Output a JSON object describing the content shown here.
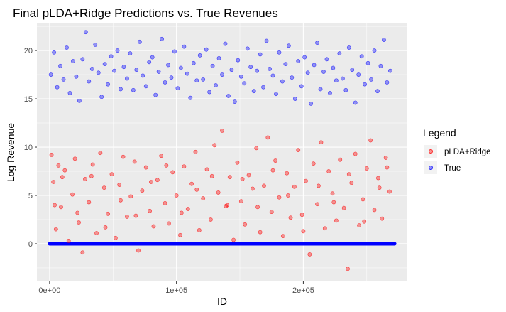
{
  "chart_data": {
    "type": "scatter",
    "title": "Final pLDA+Ridge Predictions vs. True Revenues",
    "xlabel": "ID",
    "ylabel": "Log Revenue",
    "xlim": [
      -10000,
      282000
    ],
    "ylim": [
      -3.9,
      22.8
    ],
    "x_ticks": [
      {
        "value": 0,
        "label": "0e+00"
      },
      {
        "value": 100000,
        "label": "1e+05"
      },
      {
        "value": 200000,
        "label": "2e+05"
      }
    ],
    "y_ticks": [
      {
        "value": 0,
        "label": "0"
      },
      {
        "value": 5,
        "label": "5"
      },
      {
        "value": 10,
        "label": "10"
      },
      {
        "value": 15,
        "label": "15"
      },
      {
        "value": 20,
        "label": "20"
      }
    ],
    "grid": true,
    "background": "#ebebeb",
    "legend": {
      "title": "Legend",
      "position": "right",
      "entries": [
        {
          "label": "pLDA+Ridge",
          "color": "#ff0000"
        },
        {
          "label": "True",
          "color": "#0000ff"
        }
      ]
    },
    "series": [
      {
        "name": "pLDA+Ridge",
        "color": "#ff0000",
        "points": [
          [
            1500,
            9.2
          ],
          [
            3000,
            6.4
          ],
          [
            5000,
            1.5
          ],
          [
            7000,
            8.1
          ],
          [
            9000,
            3.8
          ],
          [
            12000,
            7.6
          ],
          [
            15000,
            0.3
          ],
          [
            18000,
            5.1
          ],
          [
            20000,
            8.8
          ],
          [
            23000,
            2.2
          ],
          [
            26000,
            -0.9
          ],
          [
            28000,
            6.7
          ],
          [
            31000,
            4.3
          ],
          [
            34000,
            8.2
          ],
          [
            37000,
            1.1
          ],
          [
            40000,
            9.4
          ],
          [
            43000,
            5.8
          ],
          [
            46000,
            3.1
          ],
          [
            49000,
            7.2
          ],
          [
            52000,
            0.6
          ],
          [
            55000,
            6.1
          ],
          [
            58000,
            9.0
          ],
          [
            61000,
            2.8
          ],
          [
            64000,
            4.9
          ],
          [
            67000,
            8.5
          ],
          [
            70000,
            -0.7
          ],
          [
            73000,
            5.5
          ],
          [
            76000,
            7.9
          ],
          [
            79000,
            3.4
          ],
          [
            82000,
            1.8
          ],
          [
            85000,
            6.6
          ],
          [
            88000,
            9.1
          ],
          [
            91000,
            4.2
          ],
          [
            94000,
            2.1
          ],
          [
            97000,
            7.4
          ],
          [
            100000,
            5.0
          ],
          [
            103000,
            0.9
          ],
          [
            106000,
            8.0
          ],
          [
            109000,
            3.6
          ],
          [
            112000,
            6.2
          ],
          [
            115000,
            9.5
          ],
          [
            118000,
            1.4
          ],
          [
            121000,
            4.7
          ],
          [
            124000,
            7.7
          ],
          [
            127000,
            2.5
          ],
          [
            130000,
            10.2
          ],
          [
            133000,
            5.3
          ],
          [
            136000,
            11.7
          ],
          [
            139000,
            3.9
          ],
          [
            142000,
            6.9
          ],
          [
            145000,
            0.4
          ],
          [
            148000,
            8.4
          ],
          [
            151000,
            4.4
          ],
          [
            154000,
            2.0
          ],
          [
            157000,
            7.1
          ],
          [
            160000,
            5.7
          ],
          [
            163000,
            9.9
          ],
          [
            166000,
            1.2
          ],
          [
            169000,
            6.0
          ],
          [
            172000,
            11.0
          ],
          [
            175000,
            3.3
          ],
          [
            178000,
            8.6
          ],
          [
            181000,
            4.8
          ],
          [
            184000,
            0.8
          ],
          [
            187000,
            7.3
          ],
          [
            190000,
            2.7
          ],
          [
            193000,
            5.9
          ],
          [
            196000,
            9.7
          ],
          [
            199000,
            3.0
          ],
          [
            202000,
            6.5
          ],
          [
            205000,
            -1.1
          ],
          [
            208000,
            8.3
          ],
          [
            211000,
            4.1
          ],
          [
            214000,
            10.5
          ],
          [
            217000,
            1.6
          ],
          [
            220000,
            7.5
          ],
          [
            223000,
            5.2
          ],
          [
            226000,
            2.4
          ],
          [
            229000,
            8.7
          ],
          [
            232000,
            3.7
          ],
          [
            235000,
            -2.6
          ],
          [
            238000,
            6.3
          ],
          [
            241000,
            9.3
          ],
          [
            244000,
            1.9
          ],
          [
            247000,
            4.6
          ],
          [
            250000,
            7.8
          ],
          [
            253000,
            10.7
          ],
          [
            256000,
            3.5
          ],
          [
            259000,
            6.8
          ],
          [
            262000,
            2.6
          ],
          [
            265000,
            8.9
          ],
          [
            268000,
            5.4
          ],
          [
            4000,
            4.0
          ],
          [
            10000,
            6.9
          ],
          [
            22000,
            3.2
          ],
          [
            33000,
            7.0
          ],
          [
            44000,
            1.7
          ],
          [
            56000,
            4.5
          ],
          [
            68000,
            2.9
          ],
          [
            80000,
            6.4
          ],
          [
            92000,
            8.1
          ],
          [
            104000,
            3.2
          ],
          [
            116000,
            5.6
          ],
          [
            128000,
            7.0
          ],
          [
            140000,
            4.0
          ],
          [
            152000,
            6.7
          ],
          [
            164000,
            3.8
          ],
          [
            176000,
            7.6
          ],
          [
            188000,
            5.0
          ],
          [
            200000,
            1.3
          ],
          [
            212000,
            6.0
          ],
          [
            224000,
            4.3
          ],
          [
            236000,
            7.2
          ],
          [
            248000,
            2.3
          ],
          [
            260000,
            5.8
          ],
          [
            266000,
            7.9
          ]
        ]
      },
      {
        "name": "True",
        "color": "#0000ff",
        "points": [
          [
            1000,
            17.5
          ],
          [
            3500,
            19.8
          ],
          [
            6000,
            16.2
          ],
          [
            8500,
            18.4
          ],
          [
            11000,
            17.0
          ],
          [
            13500,
            20.3
          ],
          [
            16000,
            15.6
          ],
          [
            18500,
            18.9
          ],
          [
            21000,
            17.3
          ],
          [
            23500,
            14.8
          ],
          [
            26000,
            19.1
          ],
          [
            28500,
            21.9
          ],
          [
            31000,
            16.8
          ],
          [
            33500,
            18.1
          ],
          [
            36000,
            20.6
          ],
          [
            38500,
            17.7
          ],
          [
            41000,
            15.2
          ],
          [
            43500,
            18.6
          ],
          [
            46000,
            16.5
          ],
          [
            48500,
            19.4
          ],
          [
            51000,
            17.9
          ],
          [
            53500,
            20.0
          ],
          [
            56000,
            16.0
          ],
          [
            58500,
            18.3
          ],
          [
            61000,
            17.1
          ],
          [
            63500,
            19.7
          ],
          [
            66000,
            15.9
          ],
          [
            68500,
            18.0
          ],
          [
            71000,
            20.9
          ],
          [
            73500,
            17.4
          ],
          [
            76000,
            16.3
          ],
          [
            78500,
            18.8
          ],
          [
            81000,
            19.3
          ],
          [
            83500,
            15.4
          ],
          [
            86000,
            17.8
          ],
          [
            88500,
            21.2
          ],
          [
            91000,
            16.7
          ],
          [
            93500,
            18.5
          ],
          [
            96000,
            17.2
          ],
          [
            98500,
            19.9
          ],
          [
            101000,
            16.1
          ],
          [
            103500,
            18.2
          ],
          [
            106000,
            20.4
          ],
          [
            108500,
            17.6
          ],
          [
            111000,
            15.1
          ],
          [
            113500,
            18.7
          ],
          [
            116000,
            16.9
          ],
          [
            118500,
            19.5
          ],
          [
            121000,
            17.0
          ],
          [
            123500,
            20.1
          ],
          [
            126000,
            15.7
          ],
          [
            128500,
            18.4
          ],
          [
            131000,
            16.4
          ],
          [
            133500,
            19.2
          ],
          [
            136000,
            17.5
          ],
          [
            138500,
            20.7
          ],
          [
            141000,
            15.3
          ],
          [
            143500,
            18.0
          ],
          [
            146000,
            14.7
          ],
          [
            148500,
            19.0
          ],
          [
            151000,
            17.3
          ],
          [
            153500,
            16.6
          ],
          [
            156000,
            20.2
          ],
          [
            158500,
            18.3
          ],
          [
            161000,
            15.8
          ],
          [
            163500,
            17.9
          ],
          [
            166000,
            19.6
          ],
          [
            168500,
            16.2
          ],
          [
            171000,
            21.0
          ],
          [
            173500,
            18.1
          ],
          [
            176000,
            17.4
          ],
          [
            178500,
            15.5
          ],
          [
            181000,
            19.8
          ],
          [
            183500,
            16.8
          ],
          [
            186000,
            18.6
          ],
          [
            188500,
            20.5
          ],
          [
            191000,
            17.2
          ],
          [
            193500,
            15.0
          ],
          [
            196000,
            18.9
          ],
          [
            198500,
            16.3
          ],
          [
            201000,
            19.3
          ],
          [
            203500,
            17.7
          ],
          [
            206000,
            14.5
          ],
          [
            208500,
            18.5
          ],
          [
            211000,
            20.8
          ],
          [
            213500,
            16.0
          ],
          [
            216000,
            17.8
          ],
          [
            218500,
            19.1
          ],
          [
            221000,
            15.6
          ],
          [
            223500,
            18.2
          ],
          [
            226000,
            16.9
          ],
          [
            228500,
            19.7
          ],
          [
            231000,
            17.1
          ],
          [
            233500,
            15.9
          ],
          [
            236000,
            20.3
          ],
          [
            238500,
            18.0
          ],
          [
            241000,
            14.6
          ],
          [
            243500,
            17.5
          ],
          [
            246000,
            19.4
          ],
          [
            248500,
            16.5
          ],
          [
            251000,
            18.7
          ],
          [
            253500,
            17.0
          ],
          [
            256000,
            20.0
          ],
          [
            258500,
            15.8
          ],
          [
            261000,
            18.4
          ],
          [
            263500,
            21.1
          ],
          [
            266000,
            16.7
          ],
          [
            268500,
            17.9
          ]
        ]
      }
    ],
    "annotations": [
      {
        "series": "pLDA+Ridge",
        "y": 0,
        "x_range": [
          0,
          272000
        ],
        "note": "dense band of points at 0"
      }
    ]
  }
}
